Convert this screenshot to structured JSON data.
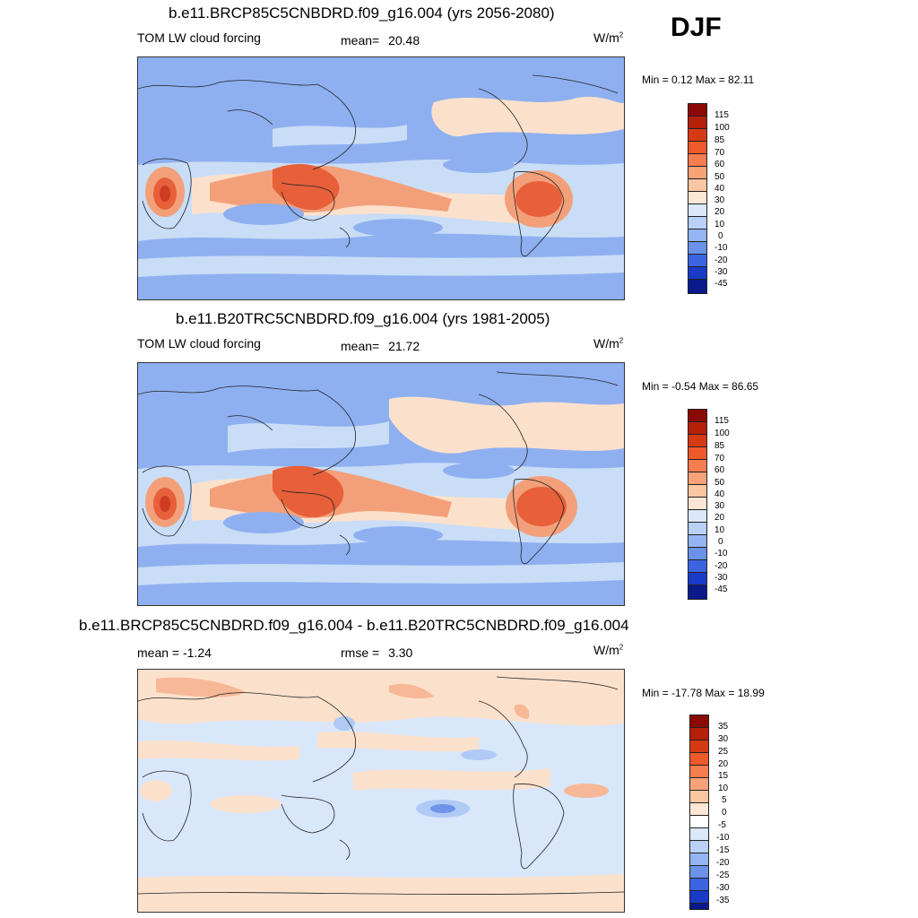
{
  "season": "DJF",
  "colors": {
    "cool_blue": "#8fb0f0",
    "pale_blue": "#c9ddf7",
    "light_peach": "#fbe1cc",
    "orange": "#f3a07a",
    "red_orange": "#e7603a",
    "deep_red": "#cf3b22",
    "coast": "#222222"
  },
  "panels": [
    {
      "title": "b.e11.BRCP85C5CNBDRD.f09_g16.004 (yrs 2056-2080)",
      "left_label": "TOM LW cloud forcing",
      "stat_label": "mean=",
      "stat_value": "20.48",
      "units": "W/m",
      "units_sup": "2",
      "minmax": "Min =   0.12 Max =  82.11",
      "colorbar": [
        "115",
        "100",
        "85",
        "70",
        "60",
        "50",
        "40",
        "30",
        "20",
        "10",
        "0",
        "-10",
        "-20",
        "-30",
        "-45"
      ]
    },
    {
      "title": "b.e11.B20TRC5CNBDRD.f09_g16.004 (yrs 1981-2005)",
      "left_label": "TOM LW cloud forcing",
      "stat_label": "mean=",
      "stat_value": "21.72",
      "units": "W/m",
      "units_sup": "2",
      "minmax": "Min =  -0.54 Max =  86.65",
      "colorbar": [
        "115",
        "100",
        "85",
        "70",
        "60",
        "50",
        "40",
        "30",
        "20",
        "10",
        "0",
        "-10",
        "-20",
        "-30",
        "-45"
      ]
    },
    {
      "title": "b.e11.BRCP85C5CNBDRD.f09_g16.004 - b.e11.B20TRC5CNBDRD.f09_g16.004",
      "left_label": "mean =  -1.24",
      "stat_label": "rmse =",
      "stat_value": "3.30",
      "units": "W/m",
      "units_sup": "2",
      "minmax": "Min = -17.78 Max =  18.99",
      "colorbar": [
        "35",
        "30",
        "25",
        "20",
        "15",
        "10",
        "5",
        "0",
        "-5",
        "-10",
        "-15",
        "-20",
        "-25",
        "-30",
        "-35"
      ]
    }
  ]
}
